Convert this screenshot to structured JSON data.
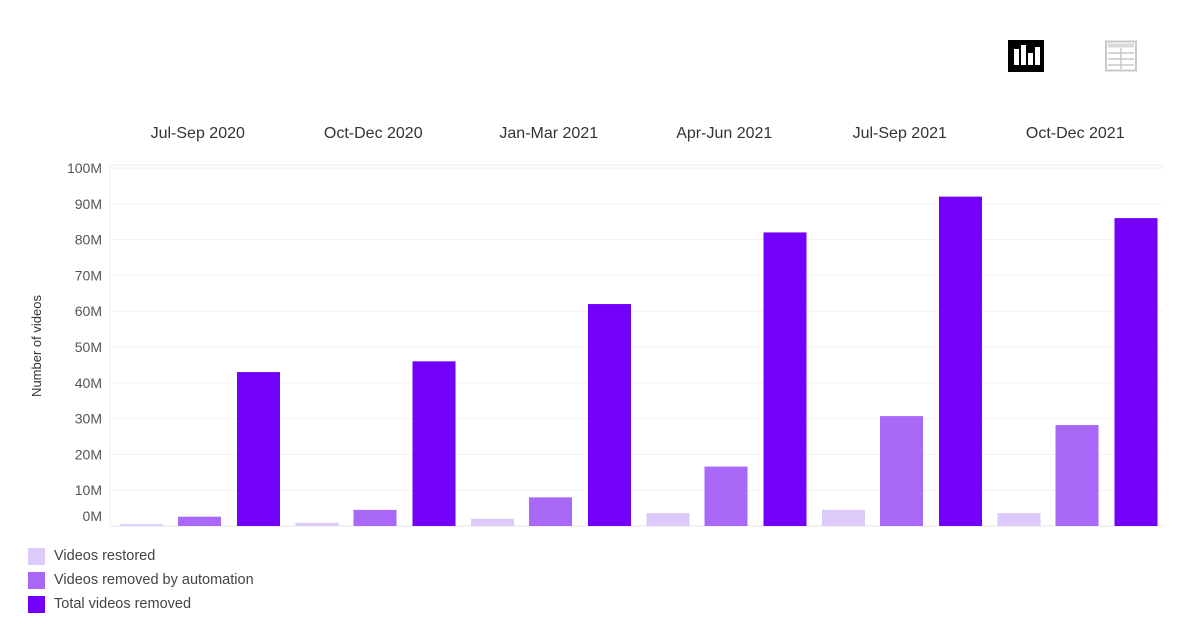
{
  "toolbar": {
    "bar_view_icon": "bar-chart-icon",
    "table_view_icon": "table-icon"
  },
  "chart_data": {
    "type": "bar",
    "categories": [
      "Jul-Sep 2020",
      "Oct-Dec 2020",
      "Jan-Mar 2021",
      "Apr-Jun 2021",
      "Jul-Sep 2021",
      "Oct-Dec 2021"
    ],
    "series": [
      {
        "name": "Videos restored",
        "color": "#dccafb",
        "values": [
          0.5,
          0.9,
          2.0,
          3.6,
          4.5,
          3.6
        ]
      },
      {
        "name": "Videos removed by automation",
        "color": "#a968f8",
        "values": [
          2.6,
          4.5,
          8.0,
          16.6,
          30.7,
          28.2
        ]
      },
      {
        "name": "Total videos removed",
        "color": "#7200fa",
        "values": [
          43.0,
          46.0,
          62.0,
          82.0,
          92.0,
          86.0
        ]
      }
    ],
    "ylabel": "Number of videos",
    "ylim": [
      0,
      100
    ],
    "yticks": [
      "0M",
      "10M",
      "20M",
      "30M",
      "40M",
      "50M",
      "60M",
      "70M",
      "80M",
      "90M",
      "100M"
    ],
    "grid": true,
    "legend_position": "bottom-left"
  }
}
